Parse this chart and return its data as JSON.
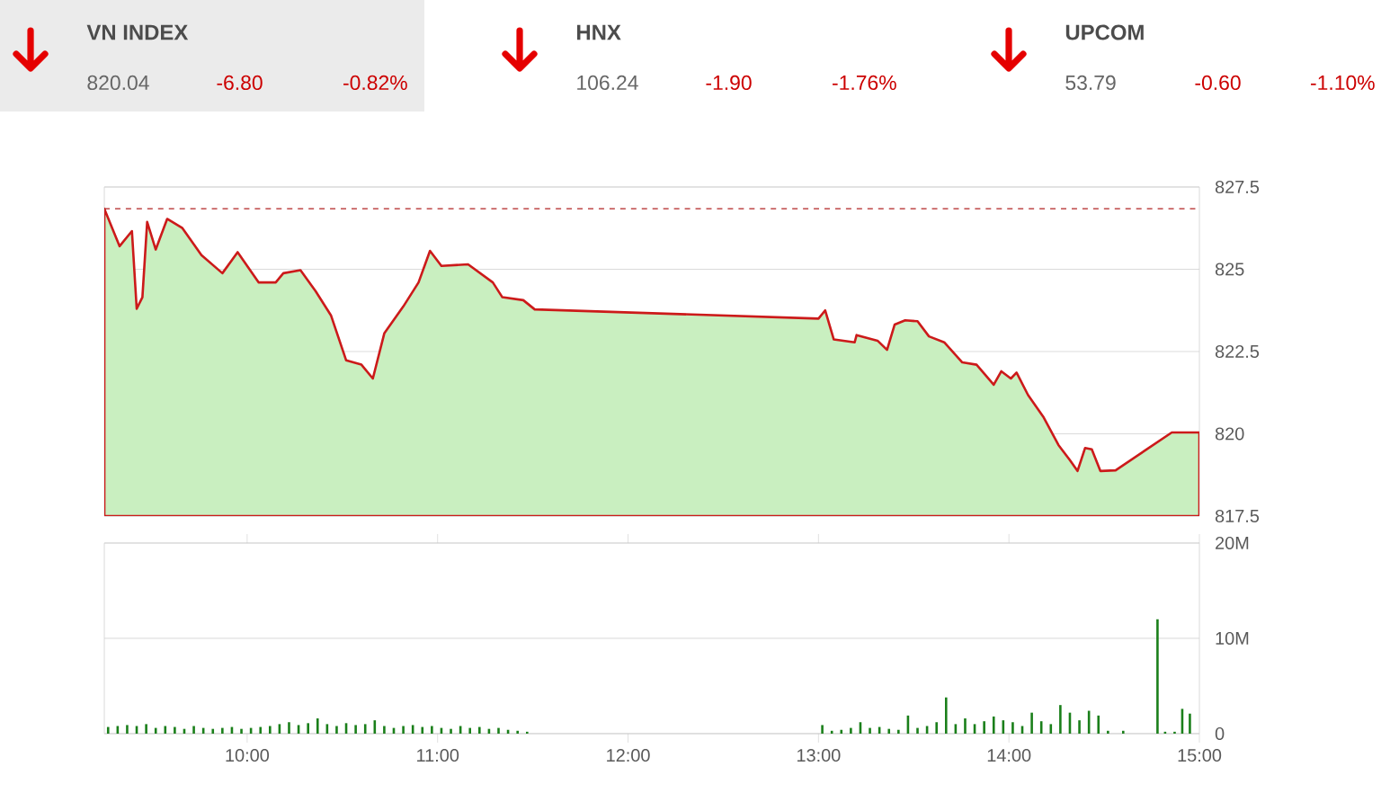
{
  "chart_data": [
    {
      "type": "other",
      "annotations": [
        "VN INDEX",
        "820.04",
        "-6.80",
        "-0.82%",
        "HNX",
        "106.24",
        "-1.90",
        "-1.76%",
        "UPCOM",
        "53.79",
        "-0.60",
        "-1.10%"
      ]
    },
    {
      "type": "area",
      "color": "#c9efc0",
      "xlim": [
        9.25,
        15.0
      ],
      "ylim": [
        817.5,
        827.5
      ],
      "yticks": [
        817.5,
        820,
        822.5,
        825,
        827.5
      ],
      "grid": "y",
      "tick_labels": "y",
      "ref_lines": [
        {
          "axis": "y",
          "value": 826.84,
          "color": "#b22222",
          "line_style": "dashed"
        }
      ],
      "x": [
        9.25,
        9.33,
        9.395,
        9.42,
        9.45,
        9.475,
        9.52,
        9.58,
        9.66,
        9.76,
        9.87,
        9.95,
        10.06,
        10.15,
        10.19,
        10.28,
        10.36,
        10.44,
        10.52,
        10.6,
        10.66,
        10.72,
        10.82,
        10.9,
        10.96,
        11.02,
        11.16,
        11.29,
        11.34,
        11.45,
        11.51,
        13.0,
        13.035,
        13.08,
        13.19,
        13.2,
        13.31,
        13.36,
        13.4,
        13.455,
        13.52,
        13.58,
        13.66,
        13.755,
        13.83,
        13.92,
        13.96,
        14.01,
        14.04,
        14.1,
        14.18,
        14.26,
        14.32,
        14.36,
        14.4,
        14.435,
        14.48,
        14.56,
        14.855,
        15.0
      ],
      "values": [
        826.84,
        825.7,
        826.16,
        823.8,
        824.15,
        826.44,
        825.6,
        826.53,
        826.25,
        825.43,
        824.88,
        825.52,
        824.6,
        824.6,
        824.88,
        824.97,
        824.33,
        823.6,
        822.23,
        822.1,
        821.68,
        823.05,
        823.87,
        824.6,
        825.56,
        825.1,
        825.15,
        824.6,
        824.15,
        824.06,
        823.78,
        823.5,
        823.75,
        822.87,
        822.78,
        823.0,
        822.83,
        822.55,
        823.32,
        823.45,
        823.42,
        822.96,
        822.78,
        822.17,
        822.1,
        821.49,
        821.9,
        821.68,
        821.86,
        821.18,
        820.52,
        819.66,
        819.2,
        818.87,
        819.57,
        819.53,
        818.87,
        818.89,
        820.04,
        820.04
      ]
    },
    {
      "type": "bar",
      "color": "#1a7f1a",
      "xlim": [
        9.25,
        15.0
      ],
      "ylim": [
        0,
        20
      ],
      "yticks": [
        0,
        {
          "value": 10,
          "label": "10M"
        },
        {
          "value": 20,
          "label": "20M"
        }
      ],
      "xticks": [
        {
          "value": 10,
          "label": "10:00"
        },
        {
          "value": 11,
          "label": "11:00"
        },
        {
          "value": 12,
          "label": "12:00"
        },
        {
          "value": 13,
          "label": "13:00"
        },
        {
          "value": 14,
          "label": "14:00"
        },
        {
          "value": 15,
          "label": "15:00"
        }
      ],
      "grid": "y",
      "x": [
        9.27,
        9.32,
        9.37,
        9.42,
        9.47,
        9.52,
        9.57,
        9.62,
        9.67,
        9.72,
        9.77,
        9.82,
        9.87,
        9.92,
        9.97,
        10.02,
        10.07,
        10.12,
        10.17,
        10.22,
        10.27,
        10.32,
        10.37,
        10.42,
        10.47,
        10.52,
        10.57,
        10.62,
        10.67,
        10.72,
        10.77,
        10.82,
        10.87,
        10.92,
        10.97,
        11.02,
        11.07,
        11.12,
        11.17,
        11.22,
        11.27,
        11.32,
        11.37,
        11.42,
        11.47,
        13.02,
        13.07,
        13.12,
        13.17,
        13.22,
        13.27,
        13.32,
        13.37,
        13.42,
        13.47,
        13.52,
        13.57,
        13.62,
        13.67,
        13.72,
        13.77,
        13.82,
        13.87,
        13.92,
        13.97,
        14.02,
        14.07,
        14.12,
        14.17,
        14.22,
        14.27,
        14.32,
        14.37,
        14.42,
        14.47,
        14.52,
        14.6,
        14.78,
        14.82,
        14.87,
        14.91,
        14.95
      ],
      "values": [
        0.7,
        0.8,
        0.9,
        0.8,
        1.0,
        0.6,
        0.8,
        0.7,
        0.5,
        0.8,
        0.6,
        0.5,
        0.6,
        0.7,
        0.5,
        0.6,
        0.7,
        0.8,
        1.0,
        1.2,
        0.9,
        1.1,
        1.6,
        1.0,
        0.8,
        1.1,
        0.9,
        1.0,
        1.4,
        0.8,
        0.6,
        0.8,
        0.9,
        0.7,
        0.8,
        0.6,
        0.5,
        0.8,
        0.6,
        0.7,
        0.5,
        0.6,
        0.4,
        0.3,
        0.2,
        0.9,
        0.3,
        0.4,
        0.6,
        1.2,
        0.6,
        0.7,
        0.5,
        0.4,
        1.9,
        0.6,
        0.8,
        1.2,
        3.8,
        1.0,
        1.6,
        1.0,
        1.3,
        1.8,
        1.4,
        1.2,
        0.8,
        2.2,
        1.3,
        1.0,
        3.0,
        2.2,
        1.4,
        2.4,
        1.9,
        0.3,
        0.3,
        12.0,
        0.2,
        0.2,
        2.6,
        2.1
      ]
    }
  ]
}
